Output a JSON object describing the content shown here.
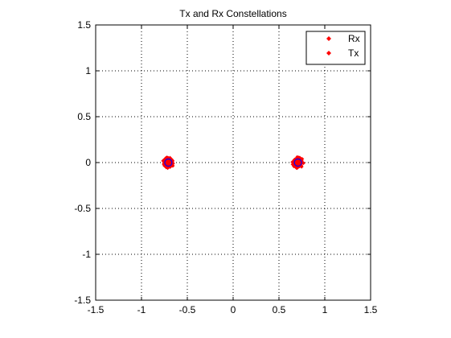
{
  "chart_data": {
    "type": "scatter",
    "title": "Tx and Rx Constellations",
    "xlabel": "",
    "ylabel": "",
    "xlim": [
      -1.5,
      1.5
    ],
    "ylim": [
      -1.5,
      1.5
    ],
    "grid": true,
    "x_ticks": [
      -1.5,
      -1,
      -0.5,
      0,
      0.5,
      1,
      1.5
    ],
    "x_tick_labels": [
      "-1.5",
      "-1",
      "-0.5",
      "0",
      "0.5",
      "1",
      "1.5"
    ],
    "y_ticks": [
      1.5,
      1,
      0.5,
      0,
      -0.5,
      -1,
      -1.5
    ],
    "y_tick_labels": [
      "1.5",
      "1",
      "0.5",
      "0",
      "-0.5",
      "-1",
      "-1.5"
    ],
    "legend_position": "top-right",
    "colors": {
      "rx": "#ff0000",
      "tx": "#ff0000",
      "tx_marker_outline": "#0000ff",
      "grid": "#000000",
      "axes": "#000000"
    },
    "series": [
      {
        "name": "Rx",
        "marker": "dot",
        "clusters": [
          {
            "center": [
              -0.707,
              0.0
            ],
            "spread": 0.05
          },
          {
            "center": [
              0.707,
              0.0
            ],
            "spread": 0.05
          }
        ]
      },
      {
        "name": "Tx",
        "marker": "dot",
        "points": [
          [
            -0.707,
            0.0
          ],
          [
            0.707,
            0.0
          ]
        ]
      }
    ]
  }
}
